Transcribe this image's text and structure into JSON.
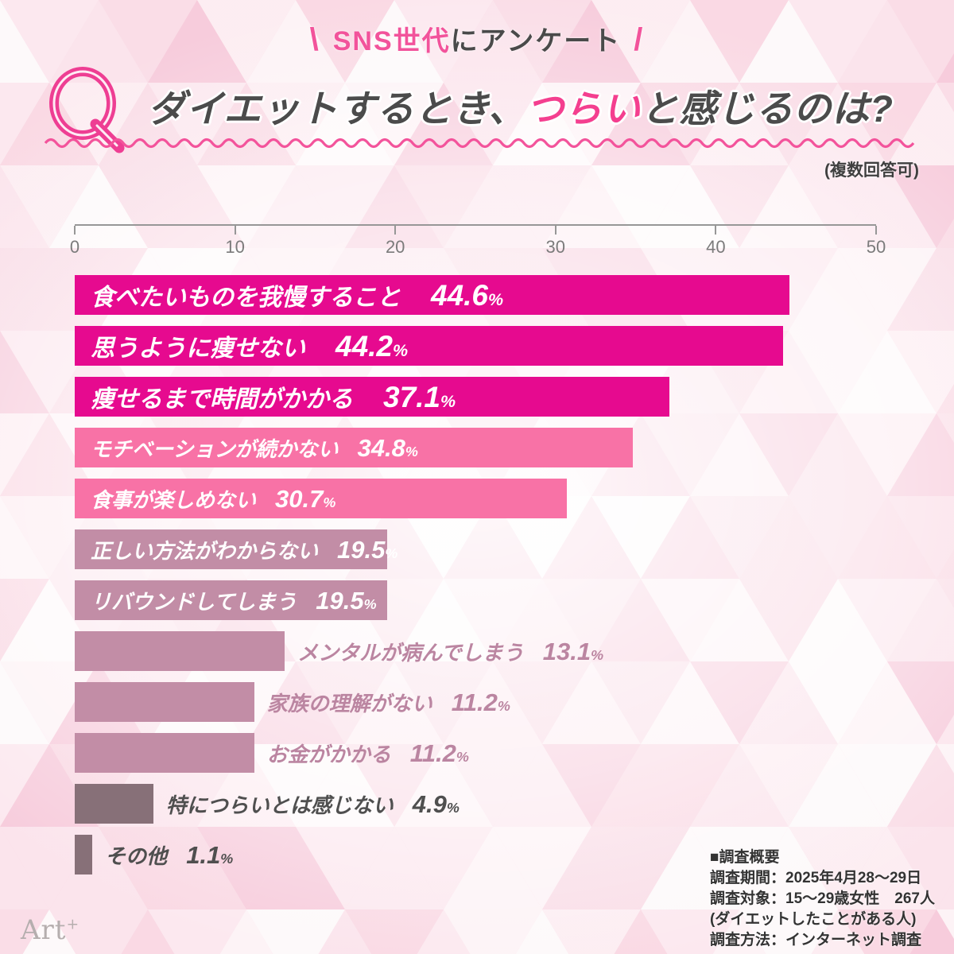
{
  "background": {
    "base_color": "#F8CFDC",
    "triangle_palette": [
      "#FFFFFF",
      "#FDEDF2",
      "#FBDFE9",
      "#F8CEDD",
      "#F5BCD1",
      "#FCE6EE",
      "#FFF6F9",
      "#F9D5E1"
    ]
  },
  "header": {
    "banner": {
      "left_slash": "\\",
      "highlight": "SNS世代",
      "rest": "にアンケート",
      "right_slash": "/"
    },
    "q_mark": "Q",
    "title": {
      "pre": "ダイエットするとき、",
      "highlight": "つらい",
      "post": "と感じるのは?"
    },
    "note": "(複数回答可)",
    "accent_color": "#F2539B"
  },
  "chart_data": {
    "type": "bar",
    "orientation": "horizontal",
    "title": "ダイエットするとき、つらいと感じるのは?",
    "unit": "%",
    "xlim": [
      0,
      50
    ],
    "x_ticks": [
      0,
      10,
      20,
      30,
      40,
      50
    ],
    "grid": false,
    "legend": "none",
    "categories": [
      "食べたいものを我慢すること",
      "思うように痩せない",
      "痩せるまで時間がかかる",
      "モチベーションが続かない",
      "食事が楽しめない",
      "正しい方法がわからない",
      "リバウンドしてしまう",
      "メンタルが病んでしまう",
      "家族の理解がない",
      "お金がかかる",
      "特につらいとは感じない",
      "その他"
    ],
    "values": [
      44.6,
      44.2,
      37.1,
      34.8,
      30.7,
      19.5,
      19.5,
      13.1,
      11.2,
      11.2,
      4.9,
      1.1
    ],
    "bar_colors": [
      "#E60A8F",
      "#E60A8F",
      "#E60A8F",
      "#F872A6",
      "#F872A6",
      "#C28DA6",
      "#C28DA6",
      "#C28DA6",
      "#C28DA6",
      "#C28DA6",
      "#877078",
      "#877078"
    ],
    "label_layout": [
      "inside",
      "inside",
      "inside",
      "inside",
      "inside",
      "inside",
      "inside",
      "outside",
      "outside",
      "outside",
      "outside",
      "outside"
    ],
    "label_colors": [
      "#FFFFFF",
      "#FFFFFF",
      "#FFFFFF",
      "#FFFFFF",
      "#FFFFFF",
      "#FFFFFF",
      "#FFFFFF",
      "#BB85A1",
      "#BB85A1",
      "#BB85A1",
      "#4F4F4F",
      "#4F4F4F"
    ],
    "size_class": [
      "lg",
      "lg",
      "lg",
      "md",
      "md",
      "md",
      "md",
      "md",
      "md",
      "md",
      "md",
      "md"
    ]
  },
  "footer": {
    "survey": {
      "heading": "■調査概要",
      "lines": [
        "調査期間：2025年4月28〜29日",
        "調査対象：15〜29歳女性　267人",
        "(ダイエットしたことがある人)",
        "調査方法：インターネット調査"
      ]
    },
    "logo": {
      "text": "Art",
      "sup": "+"
    }
  }
}
